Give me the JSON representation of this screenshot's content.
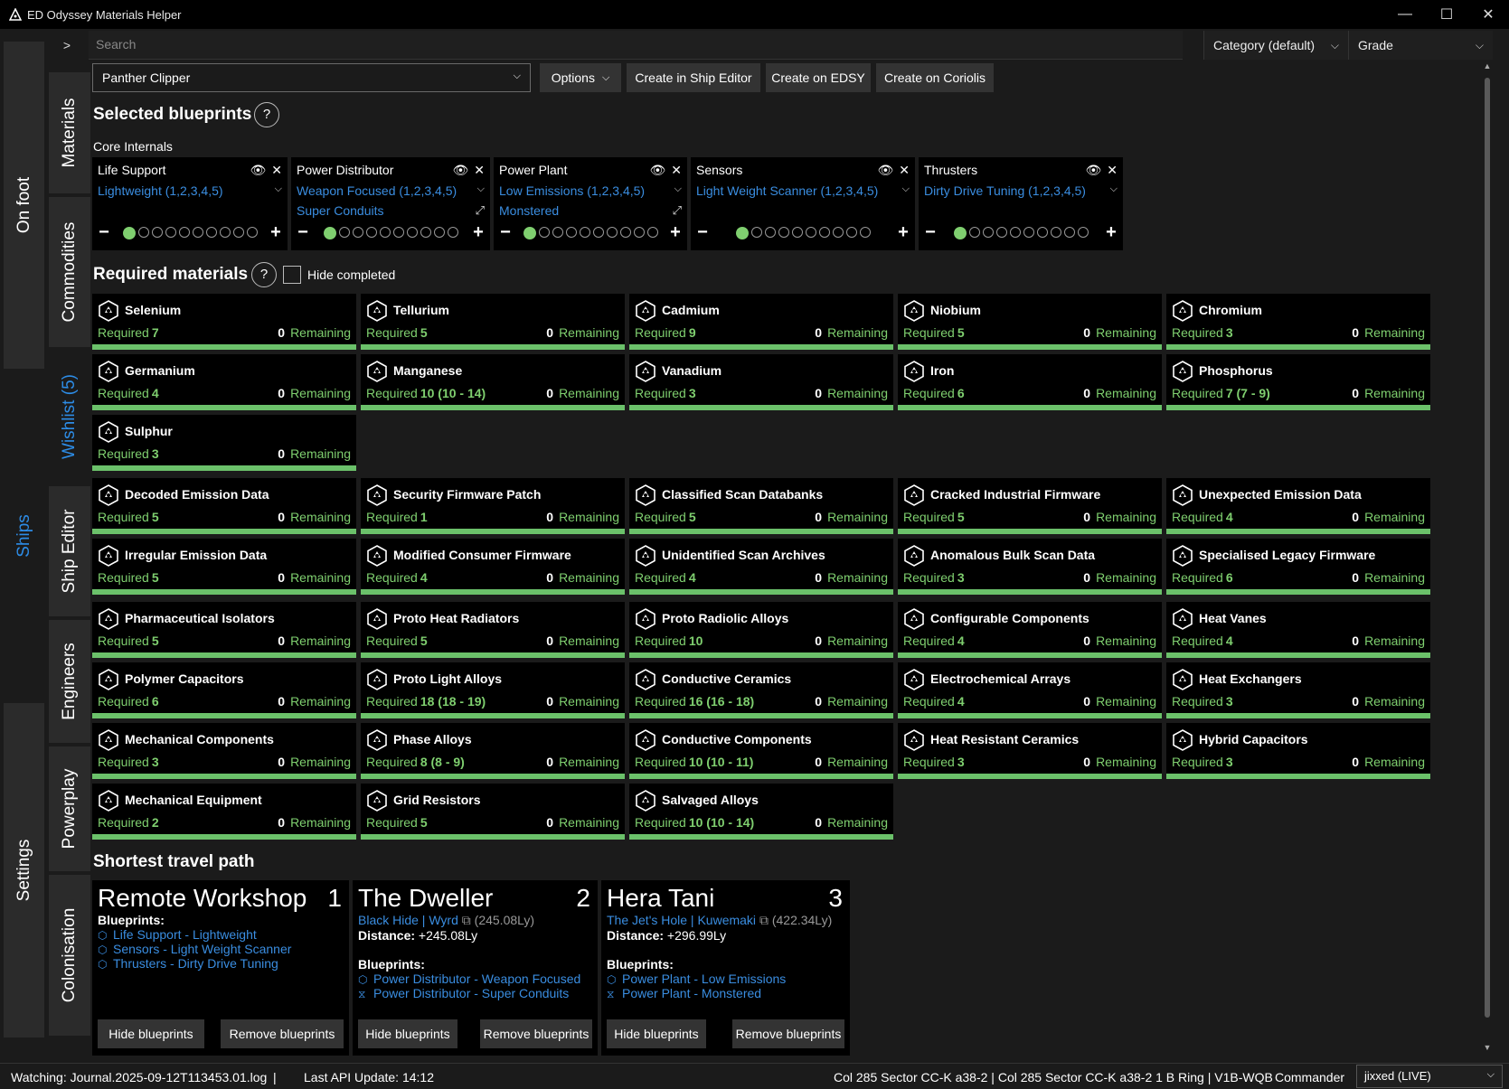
{
  "window": {
    "title": "ED Odyssey Materials Helper",
    "controls": [
      "—",
      "☐",
      "✕"
    ]
  },
  "outer_tabs": [
    {
      "label": "On foot",
      "active": false
    },
    {
      "label": "Ships",
      "active": true
    },
    {
      "label": "Settings",
      "active": false
    }
  ],
  "inner_tabs": [
    {
      "label": "Materials",
      "active": false
    },
    {
      "label": "Commodities",
      "active": false
    },
    {
      "label": "Wishlist (5)",
      "active": true
    },
    {
      "label": "Ship Editor",
      "active": false
    },
    {
      "label": "Engineers",
      "active": false
    },
    {
      "label": "Powerplay",
      "active": false
    },
    {
      "label": "Colonisation",
      "active": false
    }
  ],
  "topbar": {
    "expander": ">",
    "search_placeholder": "Search",
    "category": "Category (default)",
    "grade": "Grade"
  },
  "toolbar": {
    "ship": "Panther Clipper",
    "options": "Options",
    "create_ship_editor": "Create in Ship Editor",
    "create_edsy": "Create on EDSY",
    "create_coriolis": "Create on Coriolis"
  },
  "selected": {
    "title": "Selected blueprints",
    "help": "?",
    "group": "Core Internals",
    "cards": [
      {
        "module": "Life Support",
        "blueprint": "Lightweight (1,2,3,4,5)",
        "experimental": "",
        "grade": 1
      },
      {
        "module": "Power Distributor",
        "blueprint": "Weapon Focused (1,2,3,4,5)",
        "experimental": "Super Conduits",
        "grade": 1
      },
      {
        "module": "Power Plant",
        "blueprint": "Low Emissions (1,2,3,4,5)",
        "experimental": "Monstered",
        "grade": 1
      },
      {
        "module": "Sensors",
        "blueprint": "Light Weight Scanner (1,2,3,4,5)",
        "experimental": "",
        "grade": 1
      },
      {
        "module": "Thrusters",
        "blueprint": "Dirty Drive Tuning (1,2,3,4,5)",
        "experimental": "",
        "grade": 1
      }
    ]
  },
  "required": {
    "title": "Required materials",
    "help": "?",
    "hide_completed": "Hide completed",
    "required_label": "Required",
    "remaining_label": "Remaining",
    "raw": [
      {
        "name": "Selenium",
        "required": "7",
        "remaining": "0"
      },
      {
        "name": "Tellurium",
        "required": "5",
        "remaining": "0"
      },
      {
        "name": "Cadmium",
        "required": "9",
        "remaining": "0"
      },
      {
        "name": "Niobium",
        "required": "5",
        "remaining": "0"
      },
      {
        "name": "Chromium",
        "required": "3",
        "remaining": "0"
      },
      {
        "name": "Germanium",
        "required": "4",
        "remaining": "0"
      },
      {
        "name": "Manganese",
        "required": "10 (10 - 14)",
        "remaining": "0"
      },
      {
        "name": "Vanadium",
        "required": "3",
        "remaining": "0"
      },
      {
        "name": "Iron",
        "required": "6",
        "remaining": "0"
      },
      {
        "name": "Phosphorus",
        "required": "7 (7 - 9)",
        "remaining": "0"
      },
      {
        "name": "Sulphur",
        "required": "3",
        "remaining": "0"
      }
    ],
    "other": [
      {
        "name": "Decoded Emission Data",
        "required": "5",
        "remaining": "0"
      },
      {
        "name": "Security Firmware Patch",
        "required": "1",
        "remaining": "0"
      },
      {
        "name": "Classified Scan Databanks",
        "required": "5",
        "remaining": "0"
      },
      {
        "name": "Cracked Industrial Firmware",
        "required": "5",
        "remaining": "0"
      },
      {
        "name": "Unexpected Emission Data",
        "required": "4",
        "remaining": "0"
      },
      {
        "name": "Irregular Emission Data",
        "required": "5",
        "remaining": "0"
      },
      {
        "name": "Modified Consumer Firmware",
        "required": "4",
        "remaining": "0"
      },
      {
        "name": "Unidentified Scan Archives",
        "required": "4",
        "remaining": "0"
      },
      {
        "name": "Anomalous Bulk Scan Data",
        "required": "3",
        "remaining": "0"
      },
      {
        "name": "Specialised Legacy Firmware",
        "required": "6",
        "remaining": "0"
      },
      {
        "name": "Pharmaceutical Isolators",
        "required": "5",
        "remaining": "0"
      },
      {
        "name": "Proto Heat Radiators",
        "required": "5",
        "remaining": "0"
      },
      {
        "name": "Proto Radiolic Alloys",
        "required": "10",
        "remaining": "0"
      },
      {
        "name": "Configurable Components",
        "required": "4",
        "remaining": "0"
      },
      {
        "name": "Heat Vanes",
        "required": "4",
        "remaining": "0"
      },
      {
        "name": "Polymer Capacitors",
        "required": "6",
        "remaining": "0"
      },
      {
        "name": "Proto Light Alloys",
        "required": "18 (18 - 19)",
        "remaining": "0"
      },
      {
        "name": "Conductive Ceramics",
        "required": "16 (16 - 18)",
        "remaining": "0"
      },
      {
        "name": "Electrochemical Arrays",
        "required": "4",
        "remaining": "0"
      },
      {
        "name": "Heat Exchangers",
        "required": "3",
        "remaining": "0"
      },
      {
        "name": "Mechanical Components",
        "required": "3",
        "remaining": "0"
      },
      {
        "name": "Phase Alloys",
        "required": "8 (8 - 9)",
        "remaining": "0"
      },
      {
        "name": "Conductive Components",
        "required": "10 (10 - 11)",
        "remaining": "0"
      },
      {
        "name": "Heat Resistant Ceramics",
        "required": "3",
        "remaining": "0"
      },
      {
        "name": "Hybrid Capacitors",
        "required": "3",
        "remaining": "0"
      },
      {
        "name": "Mechanical Equipment",
        "required": "2",
        "remaining": "0"
      },
      {
        "name": "Grid Resistors",
        "required": "5",
        "remaining": "0"
      },
      {
        "name": "Salvaged Alloys",
        "required": "10 (10 - 14)",
        "remaining": "0"
      }
    ]
  },
  "travel": {
    "title": "Shortest travel path",
    "blueprints_label": "Blueprints:",
    "distance_label": "Distance:",
    "hide_label": "Hide blueprints",
    "remove_label": "Remove blueprints",
    "stops": [
      {
        "name": "Remote Workshop",
        "index": "1",
        "system": "",
        "system_ly": "",
        "distance": "",
        "blueprints": [
          "Life Support - Lightweight",
          "Sensors - Light Weight Scanner",
          "Thrusters - Dirty Drive Tuning"
        ]
      },
      {
        "name": "The Dweller",
        "index": "2",
        "system": "Black Hide | Wyrd",
        "system_ly": "(245.08Ly)",
        "distance": "+245.08Ly",
        "blueprints": [
          "Power Distributor - Weapon Focused",
          "Power Distributor - Super Conduits"
        ]
      },
      {
        "name": "Hera Tani",
        "index": "3",
        "system": "The Jet's Hole | Kuwemaki",
        "system_ly": "(422.34Ly)",
        "distance": "+296.99Ly",
        "blueprints": [
          "Power Plant - Low Emissions",
          "Power Plant - Monstered"
        ]
      }
    ]
  },
  "status": {
    "watching": "Watching: Journal.2025-09-12T113453.01.log",
    "sep": "|",
    "api": "Last API Update: 14:12",
    "location": "Col 285 Sector CC-K a38-2 | Col 285 Sector CC-K a38-2 1 B Ring | V1B-WQB",
    "commander_label": "Commander",
    "commander": "jixxed (LIVE)"
  },
  "colors": {
    "accent": "#2d8ce6",
    "link": "#3a8de0",
    "complete": "#6bc16a"
  }
}
